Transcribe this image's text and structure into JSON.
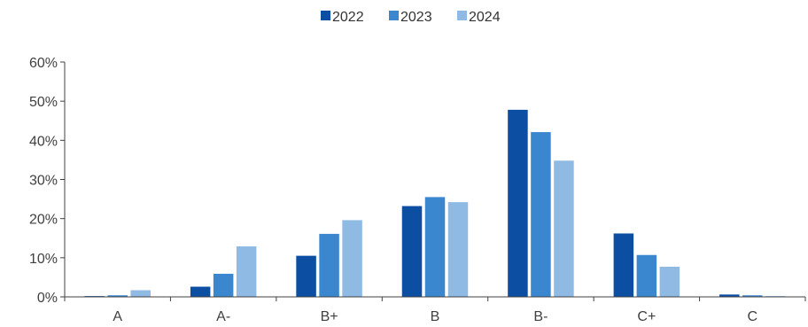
{
  "chart_data": {
    "type": "bar",
    "title": "",
    "xlabel": "",
    "ylabel": "",
    "categories": [
      "A",
      "A-",
      "B+",
      "B",
      "B-",
      "C+",
      "C"
    ],
    "series": [
      {
        "name": "2022",
        "color": "#0b4ea2",
        "values": [
          0.2,
          2.6,
          10.5,
          23.2,
          47.8,
          16.2,
          0.6
        ]
      },
      {
        "name": "2023",
        "color": "#3a87d0",
        "values": [
          0.4,
          5.9,
          16.1,
          25.5,
          42.1,
          10.7,
          0.4
        ]
      },
      {
        "name": "2024",
        "color": "#8fbae4",
        "values": [
          1.7,
          12.9,
          19.6,
          24.2,
          34.8,
          7.7,
          0.2
        ]
      }
    ],
    "ylim": [
      0,
      60
    ],
    "yticks": [
      0,
      10,
      20,
      30,
      40,
      50,
      60
    ],
    "ytick_labels": [
      "0%",
      "10%",
      "20%",
      "30%",
      "40%",
      "50%",
      "60%"
    ],
    "grid": false,
    "legend_position": "top-center"
  }
}
